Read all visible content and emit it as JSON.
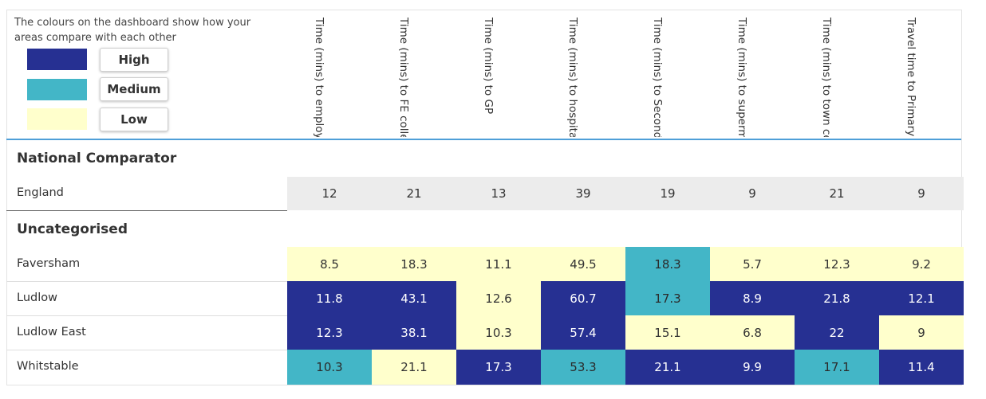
{
  "legend": {
    "text": "The colours on the dashboard show how your areas compare with each other",
    "items": [
      {
        "label": "High",
        "color": "#263092"
      },
      {
        "label": "Medium",
        "color": "#43b6c7"
      },
      {
        "label": "Low",
        "color": "#ffffcc"
      }
    ]
  },
  "columns": [
    "Time (mins) to employment centre",
    "Time (mins) to FE college",
    "Time (mins) to GP",
    "Time (mins) to hospital",
    "Time (mins) to Secondary school",
    "Time (mins) to supermarket",
    "Time (mins) to town centre",
    "Travel time to Primary"
  ],
  "national": {
    "section_title": "National Comparator",
    "name": "England",
    "values": [
      "12",
      "21",
      "13",
      "39",
      "19",
      "9",
      "21",
      "9"
    ]
  },
  "uncategorised": {
    "section_title": "Uncategorised",
    "rows": [
      {
        "name": "Faversham",
        "values": [
          "8.5",
          "18.3",
          "11.1",
          "49.5",
          "18.3",
          "5.7",
          "12.3",
          "9.2"
        ],
        "levels": [
          "low",
          "low",
          "low",
          "low",
          "medium",
          "low",
          "low",
          "low"
        ]
      },
      {
        "name": "Ludlow",
        "values": [
          "11.8",
          "43.1",
          "12.6",
          "60.7",
          "17.3",
          "8.9",
          "21.8",
          "12.1"
        ],
        "levels": [
          "high",
          "high",
          "low",
          "high",
          "medium",
          "high",
          "high",
          "high"
        ]
      },
      {
        "name": "Ludlow East",
        "values": [
          "12.3",
          "38.1",
          "10.3",
          "57.4",
          "15.1",
          "6.8",
          "22",
          "9"
        ],
        "levels": [
          "high",
          "high",
          "low",
          "high",
          "low",
          "low",
          "high",
          "low"
        ]
      },
      {
        "name": "Whitstable",
        "values": [
          "10.3",
          "21.1",
          "17.3",
          "53.3",
          "21.1",
          "9.9",
          "17.1",
          "11.4"
        ],
        "levels": [
          "medium",
          "low",
          "high",
          "medium",
          "high",
          "high",
          "medium",
          "high"
        ]
      }
    ]
  }
}
